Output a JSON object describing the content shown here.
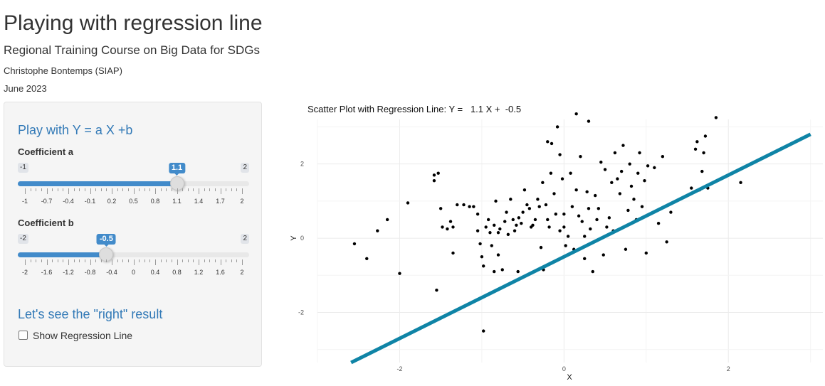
{
  "page": {
    "title": "Playing with regression line",
    "subtitle": "Regional Training Course on Big Data for SDGs",
    "author": "Christophe Bontemps (SIAP)",
    "date": "June 2023"
  },
  "sidebar": {
    "section1_heading": "Play with Y = a X +b",
    "slider_a": {
      "label": "Coefficient a",
      "min": -1,
      "max": 2,
      "value": 1.1,
      "min_label": "-1",
      "max_label": "2",
      "value_label": "1.1",
      "ticks": [
        "-1",
        "-0.7",
        "-0.4",
        "-0.1",
        "0.2",
        "0.5",
        "0.8",
        "1.1",
        "1.4",
        "1.7",
        "2"
      ]
    },
    "slider_b": {
      "label": "Coefficient b",
      "min": -2,
      "max": 2,
      "value": -0.5,
      "min_label": "-2",
      "max_label": "2",
      "value_label": "-0.5",
      "ticks": [
        "-2",
        "-1.6",
        "-1.2",
        "-0.8",
        "-0.4",
        "0",
        "0.4",
        "0.8",
        "1.2",
        "1.6",
        "2"
      ]
    },
    "section2_heading": "Let's see the \"right\" result",
    "checkbox_label": "Show Regression Line",
    "checkbox_checked": false
  },
  "chart_data": {
    "type": "scatter",
    "title": "Scatter Plot with Regression Line: Y =   1.1 X +  -0.5",
    "xlabel": "X",
    "ylabel": "Y",
    "xlim": [
      -3.0,
      3.15
    ],
    "ylim": [
      -3.35,
      3.2
    ],
    "xticks": [
      -2,
      0,
      2
    ],
    "xtick_labels": [
      "-2",
      "0",
      "2"
    ],
    "yticks": [
      -2,
      0,
      2
    ],
    "ytick_labels": [
      "-2",
      "0",
      "2"
    ],
    "grid": true,
    "line": {
      "slope": 1.1,
      "intercept": -0.5,
      "color": "#0f84a6"
    },
    "point_color": "#000000",
    "points": [
      [
        -2.55,
        -0.15
      ],
      [
        -2.4,
        -0.55
      ],
      [
        -2.27,
        0.2
      ],
      [
        -2.15,
        0.5
      ],
      [
        -2.0,
        -0.95
      ],
      [
        -1.9,
        0.95
      ],
      [
        -1.58,
        1.7
      ],
      [
        -1.58,
        1.55
      ],
      [
        -1.53,
        1.75
      ],
      [
        -1.5,
        0.8
      ],
      [
        -1.48,
        0.3
      ],
      [
        -1.42,
        0.25
      ],
      [
        -1.38,
        0.45
      ],
      [
        -1.35,
        0.3
      ],
      [
        -1.35,
        -0.4
      ],
      [
        -1.3,
        0.9
      ],
      [
        -1.22,
        0.9
      ],
      [
        -1.15,
        0.85
      ],
      [
        -1.1,
        0.85
      ],
      [
        -1.05,
        0.65
      ],
      [
        -1.05,
        0.2
      ],
      [
        -1.02,
        -0.15
      ],
      [
        -1.0,
        -0.5
      ],
      [
        -0.98,
        -0.75
      ],
      [
        -0.95,
        0.3
      ],
      [
        -0.92,
        0.5
      ],
      [
        -0.9,
        0.15
      ],
      [
        -0.88,
        -0.2
      ],
      [
        -0.85,
        0.35
      ],
      [
        -0.85,
        -0.9
      ],
      [
        -0.83,
        1.0
      ],
      [
        -0.8,
        0.15
      ],
      [
        -0.8,
        -0.45
      ],
      [
        -0.78,
        0.25
      ],
      [
        -0.75,
        -0.85
      ],
      [
        -0.72,
        0.45
      ],
      [
        -0.7,
        0.7
      ],
      [
        -0.68,
        0.1
      ],
      [
        -0.65,
        1.05
      ],
      [
        -0.62,
        0.5
      ],
      [
        -0.6,
        0.2
      ],
      [
        -0.58,
        0.35
      ],
      [
        -0.56,
        -0.9
      ],
      [
        -0.55,
        0.55
      ],
      [
        -0.52,
        0.4
      ],
      [
        -0.5,
        0.7
      ],
      [
        -0.48,
        1.3
      ],
      [
        -0.45,
        0.9
      ],
      [
        -0.42,
        0.8
      ],
      [
        -0.4,
        0.3
      ],
      [
        -0.38,
        0.35
      ],
      [
        -0.35,
        0.5
      ],
      [
        -0.32,
        1.05
      ],
      [
        -0.3,
        0.85
      ],
      [
        -0.28,
        -0.25
      ],
      [
        -0.26,
        1.5
      ],
      [
        -0.25,
        -0.85
      ],
      [
        -0.22,
        0.9
      ],
      [
        -0.2,
        0.5
      ],
      [
        -0.2,
        2.6
      ],
      [
        -0.18,
        0.3
      ],
      [
        -0.16,
        1.75
      ],
      [
        -0.15,
        2.55
      ],
      [
        -0.12,
        1.2
      ],
      [
        -0.1,
        0.65
      ],
      [
        -0.05,
        2.25
      ],
      [
        -0.05,
        0.2
      ],
      [
        -0.02,
        1.6
      ],
      [
        0.0,
        0.65
      ],
      [
        0.0,
        0.3
      ],
      [
        0.02,
        -0.2
      ],
      [
        0.05,
        0.05
      ],
      [
        0.08,
        1.75
      ],
      [
        0.1,
        0.85
      ],
      [
        0.12,
        -0.3
      ],
      [
        0.15,
        1.3
      ],
      [
        0.18,
        0.6
      ],
      [
        0.2,
        2.2
      ],
      [
        0.22,
        0.45
      ],
      [
        0.25,
        -0.55
      ],
      [
        0.25,
        0.05
      ],
      [
        0.28,
        1.25
      ],
      [
        0.3,
        0.8
      ],
      [
        0.32,
        0.25
      ],
      [
        0.35,
        -0.9
      ],
      [
        0.38,
        1.15
      ],
      [
        0.4,
        0.5
      ],
      [
        0.42,
        0.8
      ],
      [
        0.45,
        2.05
      ],
      [
        0.48,
        -0.45
      ],
      [
        0.5,
        1.85
      ],
      [
        0.52,
        0.3
      ],
      [
        0.55,
        0.55
      ],
      [
        0.58,
        1.5
      ],
      [
        0.6,
        0.2
      ],
      [
        0.62,
        2.3
      ],
      [
        0.65,
        1.6
      ],
      [
        0.68,
        1.2
      ],
      [
        0.7,
        1.8
      ],
      [
        0.72,
        2.5
      ],
      [
        0.75,
        -0.3
      ],
      [
        0.78,
        0.75
      ],
      [
        0.8,
        2.0
      ],
      [
        0.82,
        1.4
      ],
      [
        0.85,
        1.05
      ],
      [
        0.88,
        0.5
      ],
      [
        0.9,
        1.75
      ],
      [
        0.92,
        2.3
      ],
      [
        0.95,
        0.85
      ],
      [
        0.98,
        1.55
      ],
      [
        1.0,
        -0.4
      ],
      [
        1.02,
        1.95
      ],
      [
        1.1,
        1.9
      ],
      [
        1.15,
        0.4
      ],
      [
        1.2,
        2.2
      ],
      [
        1.25,
        -0.1
      ],
      [
        1.3,
        0.7
      ],
      [
        1.55,
        1.35
      ],
      [
        1.6,
        2.4
      ],
      [
        1.62,
        2.6
      ],
      [
        1.65,
        1.3
      ],
      [
        1.68,
        1.8
      ],
      [
        1.7,
        2.3
      ],
      [
        1.72,
        2.75
      ],
      [
        1.75,
        1.35
      ],
      [
        1.85,
        3.25
      ],
      [
        2.15,
        1.5
      ],
      [
        -0.98,
        -2.5
      ],
      [
        -1.55,
        -1.4
      ],
      [
        0.15,
        3.35
      ],
      [
        0.3,
        3.15
      ],
      [
        -0.08,
        3.0
      ]
    ]
  }
}
